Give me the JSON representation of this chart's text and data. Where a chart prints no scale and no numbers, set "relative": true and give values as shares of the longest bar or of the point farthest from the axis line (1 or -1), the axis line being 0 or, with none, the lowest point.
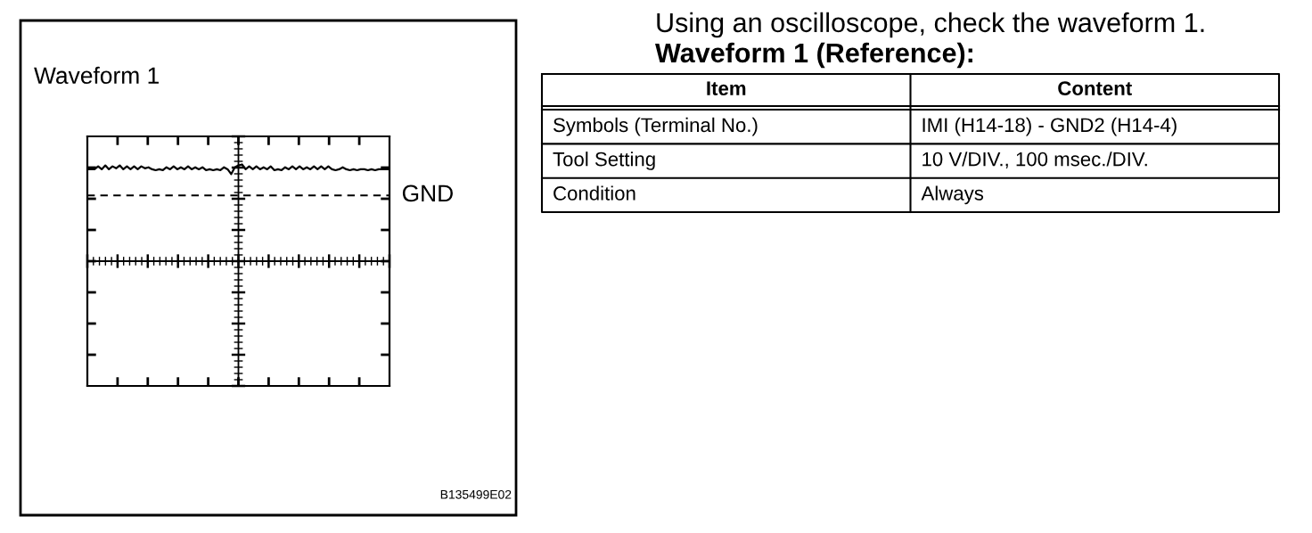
{
  "chart_data": [
    {
      "type": "line",
      "title": "Waveform 1",
      "relative": true,
      "tick_labels": false,
      "categories": [
        null,
        null,
        null,
        null,
        null,
        null,
        null,
        null,
        null,
        null,
        null,
        null,
        null,
        null,
        null,
        null,
        null,
        null,
        null,
        null,
        null,
        null,
        null,
        null,
        null,
        null,
        null,
        null,
        null,
        null,
        null,
        null,
        null,
        null,
        null,
        null,
        null,
        null,
        null,
        null,
        null,
        null,
        null,
        null,
        null,
        null,
        null,
        null,
        null,
        null,
        null,
        null,
        null,
        null,
        null,
        null,
        null,
        null,
        null,
        null,
        null,
        null,
        null,
        null,
        null,
        null,
        null,
        null,
        null,
        null,
        null,
        null,
        null,
        null,
        null,
        null,
        null,
        null,
        null,
        null,
        null,
        null,
        null,
        null,
        null
      ],
      "series": [
        {
          "color": "#000000",
          "values": [
            0.95,
            0.95,
            0.95,
            0.98,
            0.95,
            0.99,
            0.95,
            0.98,
            0.96,
            0.99,
            0.95,
            0.98,
            0.95,
            0.98,
            0.95,
            0.98,
            0.96,
            0.97,
            0.95,
            0.94,
            0.95,
            0.94,
            0.97,
            0.95,
            0.98,
            0.95,
            0.97,
            0.95,
            0.98,
            0.95,
            0.97,
            0.95,
            0.97,
            0.94,
            0.95,
            0.94,
            0.95,
            0.94,
            0.97,
            0.95,
            0.9,
            0.97,
            0.99,
            1.0,
            0.95,
            0.98,
            0.95,
            0.98,
            0.95,
            0.97,
            0.95,
            0.98,
            0.94,
            0.95,
            0.94,
            0.97,
            0.95,
            0.98,
            0.95,
            0.98,
            0.95,
            0.97,
            0.95,
            0.98,
            0.95,
            0.98,
            0.95,
            0.98,
            0.95,
            0.94,
            0.95,
            0.97,
            0.95,
            0.94,
            0.95,
            0.94,
            0.95,
            0.95,
            0.94,
            0.95,
            0.94,
            0.95,
            0.95,
            0.95,
            0.95
          ]
        }
      ],
      "ref_lines": [
        {
          "axis": "y",
          "value": 0.68,
          "label": "GND",
          "color": "#000000",
          "line_style": "dashed"
        }
      ],
      "annotations": [
        "B135499E02"
      ]
    },
    {
      "type": "other",
      "title": "Using an oscilloscope, check the waveform 1.",
      "subtitle": "Waveform 1 (Reference):",
      "categories": [
        "Item",
        "Content"
      ],
      "annotations": [
        "Symbols (Terminal No.)",
        "IMI (H14-18) - GND2 (H14-4)",
        "Tool Setting",
        "10 V/DIV., 100 msec./DIV.",
        "Condition",
        "Always"
      ]
    }
  ]
}
